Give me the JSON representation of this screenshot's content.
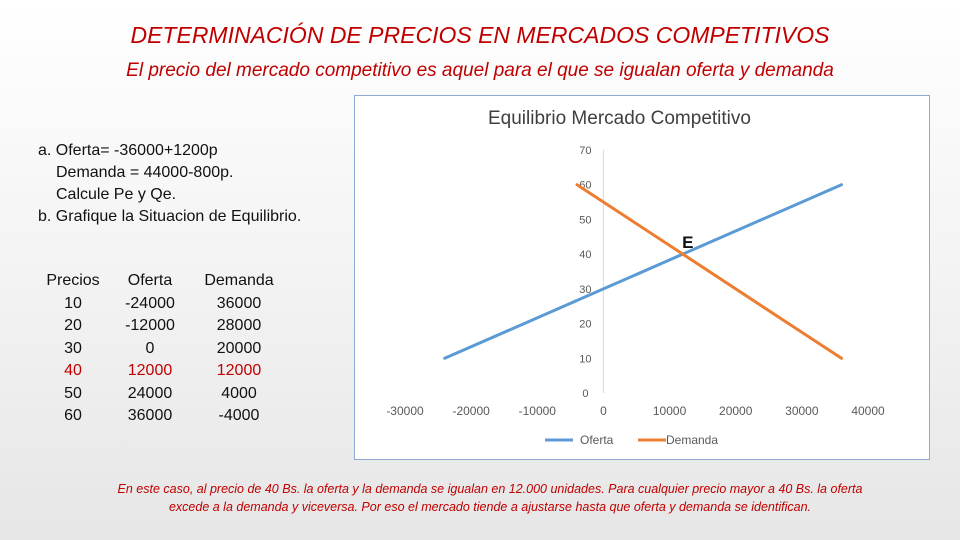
{
  "header": {
    "title": "DETERMINACIÓN DE PRECIOS EN MERCADOS COMPETITIVOS",
    "subtitle": "El precio del mercado competitivo es aquel para el que se igualan oferta y demanda"
  },
  "problem": {
    "a_line1": "a. Oferta= -36000+1200p",
    "a_line2": "Demanda = 44000-800p.",
    "a_line3": "Calcule Pe y Qe.",
    "b_line": "b. Grafique la Situacion de Equilibrio."
  },
  "table": {
    "headers": [
      "Precios",
      "Oferta",
      "Demanda"
    ],
    "rows": [
      {
        "precio": "10",
        "oferta": "-24000",
        "demanda": "36000",
        "highlight": false
      },
      {
        "precio": "20",
        "oferta": "-12000",
        "demanda": "28000",
        "highlight": false
      },
      {
        "precio": "30",
        "oferta": "0",
        "demanda": "20000",
        "highlight": false
      },
      {
        "precio": "40",
        "oferta": "12000",
        "demanda": "12000",
        "highlight": true
      },
      {
        "precio": "50",
        "oferta": "24000",
        "demanda": "4000",
        "highlight": false
      },
      {
        "precio": "60",
        "oferta": "36000",
        "demanda": "-4000",
        "highlight": false
      }
    ]
  },
  "chart_data": {
    "type": "line",
    "title": "Equilibrio Mercado Competitivo",
    "xlabel": "",
    "ylabel": "",
    "xlim": [
      -30000,
      40000
    ],
    "ylim": [
      0,
      70
    ],
    "x_ticks": [
      "-30000",
      "-20000",
      "-10000",
      "0",
      "10000",
      "20000",
      "30000",
      "40000"
    ],
    "y_ticks": [
      "0",
      "10",
      "20",
      "30",
      "40",
      "50",
      "60",
      "70"
    ],
    "grid": false,
    "legend_position": "bottom",
    "series": [
      {
        "name": "Oferta",
        "color": "#5b9bd5",
        "points": [
          [
            -24000,
            10
          ],
          [
            -12000,
            20
          ],
          [
            0,
            30
          ],
          [
            12000,
            40
          ],
          [
            24000,
            50
          ],
          [
            36000,
            60
          ]
        ]
      },
      {
        "name": "Demanda",
        "color": "#ed7d31",
        "points": [
          [
            36000,
            10
          ],
          [
            28000,
            20
          ],
          [
            20000,
            30
          ],
          [
            12000,
            40
          ],
          [
            4000,
            50
          ],
          [
            -4000,
            60
          ]
        ]
      }
    ],
    "annotations": [
      {
        "text": "E",
        "x": 12000,
        "y": 40
      }
    ]
  },
  "footer": {
    "line1": "En este caso, al precio de 40 Bs. la oferta y la demanda se igualan en 12.000 unidades. Para cualquier precio mayor a 40 Bs. la oferta",
    "line2": "excede a la demanda y viceversa. Por eso el mercado tiende a ajustarse hasta que oferta y demanda se identifican."
  }
}
